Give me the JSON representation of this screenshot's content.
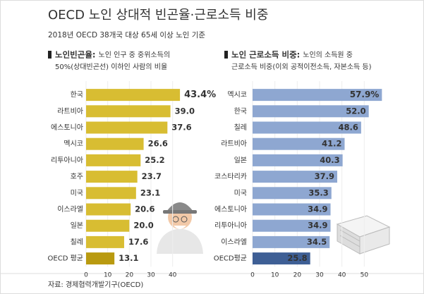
{
  "title": "OECD 노인 상대적 빈곤율·근로소득 비중",
  "subtitle": "2018년 OECD 38개국 대상 65세 이상 노인 기준",
  "source": "자료: 경제협력개발기구(OECD)",
  "chart_data": [
    {
      "type": "bar",
      "title": "노인빈곤율:",
      "subtitle": [
        "노인 인구 중 중위소득의",
        "50%(상대빈곤선) 이하인 사람의 비율"
      ],
      "categories": [
        "한국",
        "라트비아",
        "에스토니아",
        "멕시코",
        "리투아니아",
        "호주",
        "미국",
        "이스라엘",
        "일본",
        "칠레",
        "OECD 평균"
      ],
      "values": [
        43.4,
        39.0,
        37.6,
        26.6,
        25.2,
        23.7,
        23.1,
        20.6,
        20.0,
        17.6,
        13.1
      ],
      "value_labels": [
        "43.4%",
        "39.0",
        "37.6",
        "26.6",
        "25.2",
        "23.7",
        "23.1",
        "20.6",
        "20.0",
        "17.6",
        "13.1"
      ],
      "colors": [
        "#d8bd32",
        "#d8bd32",
        "#d8bd32",
        "#d8bd32",
        "#d8bd32",
        "#d8bd32",
        "#d8bd32",
        "#d8bd32",
        "#d8bd32",
        "#d8bd32",
        "#b99a10"
      ],
      "xlim": [
        0,
        45
      ],
      "xticks": [
        0,
        10,
        20,
        30,
        40
      ],
      "grid": true
    },
    {
      "type": "bar",
      "title": "노인 근로소득 비중:",
      "subtitle": [
        "노인의 소득원 중",
        "근로소득 비중(이외 공적이전소득, 자본소득 등)"
      ],
      "categories": [
        "멕시코",
        "한국",
        "칠레",
        "라트비아",
        "일본",
        "코스타리카",
        "미국",
        "에스토니아",
        "리투아니아",
        "이스라엘",
        "OECD평균"
      ],
      "values": [
        57.9,
        52.0,
        48.6,
        41.2,
        40.3,
        37.9,
        35.3,
        34.9,
        34.9,
        34.5,
        25.8
      ],
      "value_labels": [
        "57.9%",
        "52.0",
        "48.6",
        "41.2",
        "40.3",
        "37.9",
        "35.3",
        "34.9",
        "34.9",
        "34.5",
        "25.8"
      ],
      "colors": [
        "#8ea7d1",
        "#8ea7d1",
        "#8ea7d1",
        "#8ea7d1",
        "#8ea7d1",
        "#8ea7d1",
        "#8ea7d1",
        "#8ea7d1",
        "#8ea7d1",
        "#8ea7d1",
        "#3e5f95"
      ],
      "xlim": [
        0,
        60
      ],
      "xticks": [
        0,
        10,
        20,
        30,
        40,
        50
      ],
      "grid": true
    }
  ]
}
